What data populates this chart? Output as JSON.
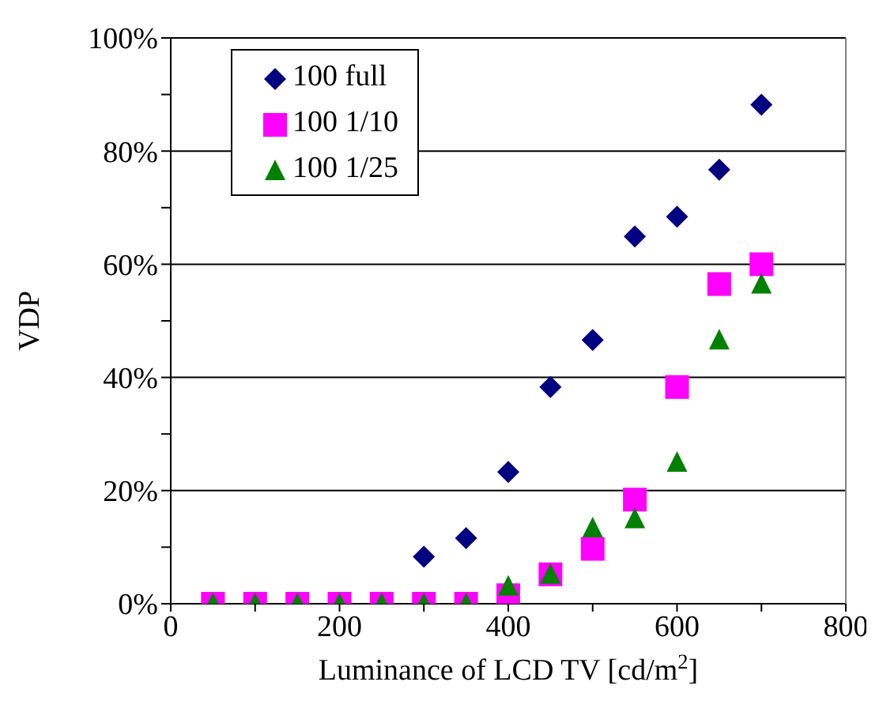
{
  "chart_data": {
    "type": "scatter",
    "xlabel": "Luminance of LCD TV [cd/m$^{2}$]",
    "ylabel": "VDP",
    "x": [
      50,
      100,
      150,
      200,
      250,
      300,
      350,
      400,
      450,
      500,
      550,
      600,
      650,
      700
    ],
    "series": [
      {
        "name": "100 full",
        "color": "#000080",
        "marker": "diamond",
        "values": [
          null,
          null,
          null,
          null,
          null,
          8.3,
          11.6,
          23.3,
          38.3,
          46.6,
          64.9,
          68.4,
          76.7,
          88.2
        ]
      },
      {
        "name": "100 1/10",
        "color": "#ff00ff",
        "marker": "square",
        "values": [
          0,
          0,
          0,
          0,
          0,
          0,
          0,
          1.5,
          5.2,
          9.7,
          18.4,
          38.3,
          56.5,
          60
        ]
      },
      {
        "name": "100 1/25",
        "color": "#008000",
        "marker": "triangle",
        "values": [
          0,
          0,
          0,
          0,
          0,
          0,
          0,
          3.1,
          5.2,
          13.4,
          15,
          25,
          46.6,
          56.5
        ]
      }
    ],
    "xlim": [
      0,
      800
    ],
    "xticks": [
      0,
      {
        "value": 100,
        "label": null
      },
      200,
      {
        "value": 300,
        "label": null
      },
      400,
      {
        "value": 500,
        "label": null
      },
      600,
      {
        "value": 700,
        "label": null
      },
      800
    ],
    "ylim": [
      0,
      100
    ],
    "yticks": [
      {
        "value": 0,
        "label": "0%"
      },
      {
        "value": 10,
        "label": null
      },
      {
        "value": 20,
        "label": "20%"
      },
      {
        "value": 30,
        "label": null
      },
      {
        "value": 40,
        "label": "40%"
      },
      {
        "value": 50,
        "label": null
      },
      {
        "value": 60,
        "label": "60%"
      },
      {
        "value": 70,
        "label": null
      },
      {
        "value": 80,
        "label": "80%"
      },
      {
        "value": 90,
        "label": null
      },
      {
        "value": 100,
        "label": "100%"
      }
    ],
    "grid": "y",
    "legend": "top left"
  }
}
